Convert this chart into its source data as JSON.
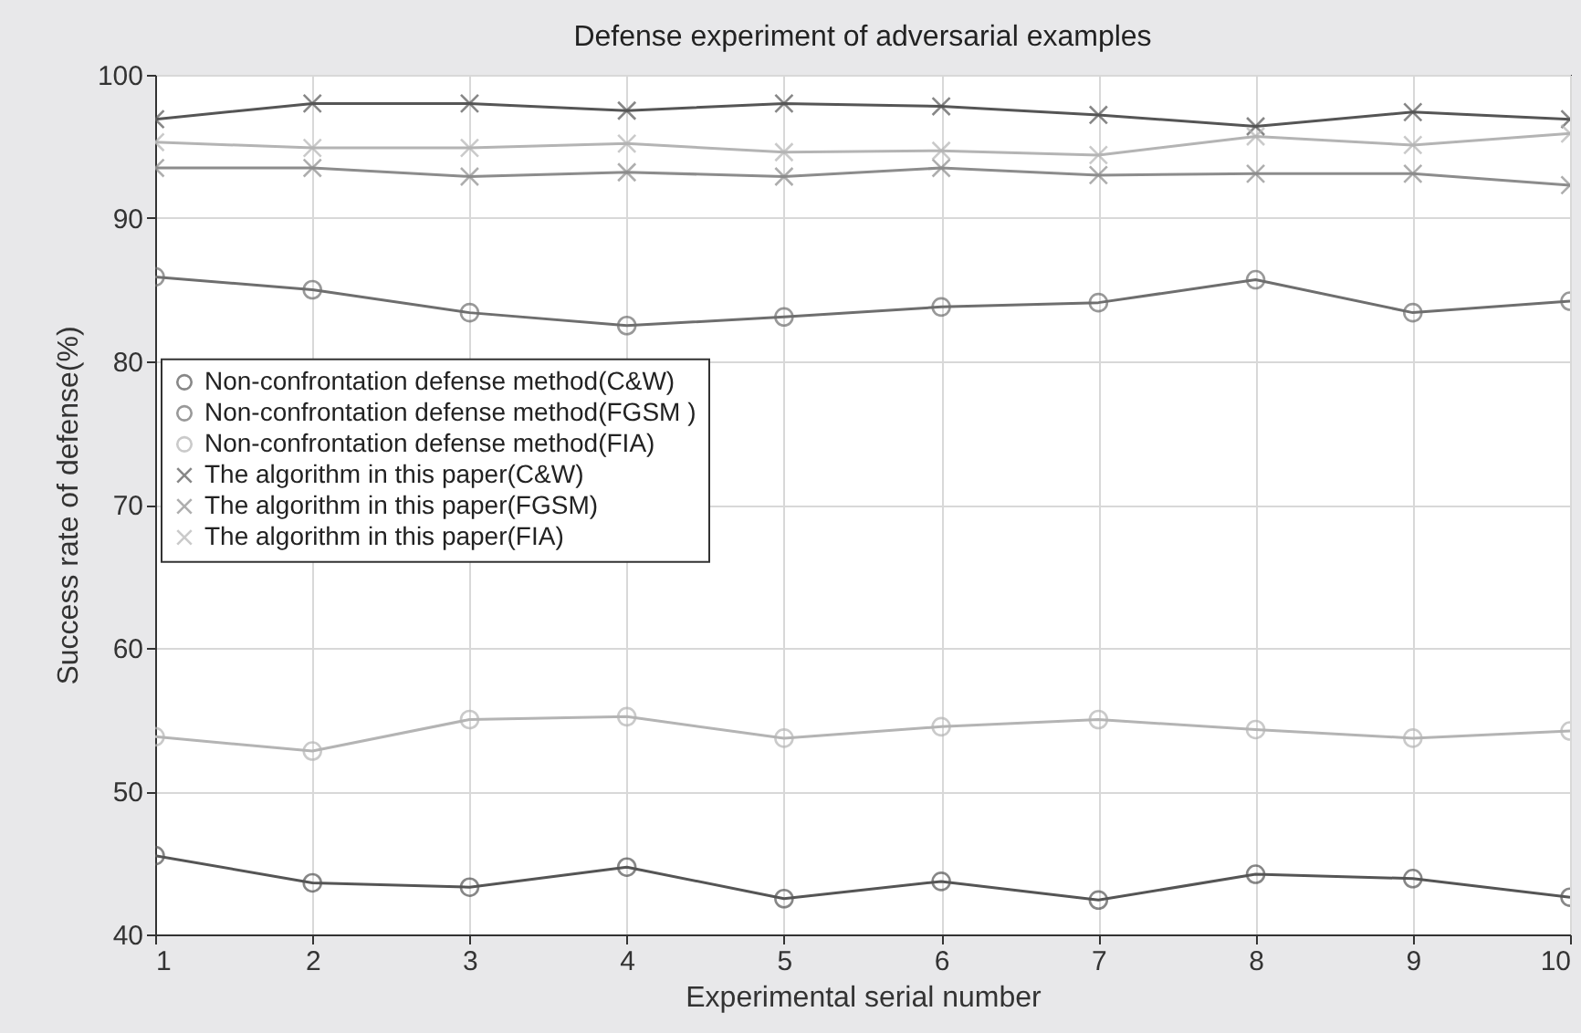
{
  "chart_data": {
    "type": "line",
    "title": "Defense experiment of adversarial examples",
    "xlabel": "Experimental serial number",
    "ylabel": "Success rate of defense(%)",
    "x": [
      1,
      2,
      3,
      4,
      5,
      6,
      7,
      8,
      9,
      10
    ],
    "xlim": [
      1,
      10
    ],
    "xticks": [
      1,
      2,
      3,
      4,
      5,
      6,
      7,
      8,
      9,
      10
    ],
    "ylim": [
      40,
      100
    ],
    "yticks": [
      40,
      50,
      60,
      70,
      80,
      90,
      100
    ],
    "grid": true,
    "legend": "left",
    "series": [
      {
        "name": "Non-confrontation defense method(C&W)",
        "color": "#555555",
        "marker": "circle",
        "values": [
          45.5,
          43.6,
          43.3,
          44.7,
          42.5,
          43.7,
          42.4,
          44.2,
          43.9,
          42.6
        ]
      },
      {
        "name": "Non-confrontation defense method(FGSM )",
        "color": "#6e6e6e",
        "marker": "circle",
        "values": [
          85.9,
          85.0,
          83.4,
          82.5,
          83.1,
          83.8,
          84.1,
          85.7,
          83.4,
          84.2
        ]
      },
      {
        "name": "Non-confrontation defense method(FIA)",
        "color": "#b4b4b4",
        "marker": "circle",
        "values": [
          53.8,
          52.8,
          55.0,
          55.2,
          53.7,
          54.5,
          55.0,
          54.3,
          53.7,
          54.2
        ]
      },
      {
        "name": "The algorithm in this paper(C&W)",
        "color": "#555555",
        "marker": "cross",
        "values": [
          96.9,
          98.0,
          98.0,
          97.5,
          98.0,
          97.8,
          97.2,
          96.4,
          97.4,
          96.9
        ]
      },
      {
        "name": "The algorithm in this paper(FGSM)",
        "color": "#8c8c8c",
        "marker": "cross",
        "values": [
          93.5,
          93.5,
          92.9,
          93.2,
          92.9,
          93.5,
          93.0,
          93.1,
          93.1,
          92.3
        ]
      },
      {
        "name": "The algorithm in this paper(FIA)",
        "color": "#b4b4b4",
        "marker": "cross",
        "values": [
          95.3,
          94.9,
          94.9,
          95.2,
          94.6,
          94.7,
          94.4,
          95.7,
          95.1,
          95.9
        ]
      }
    ]
  }
}
